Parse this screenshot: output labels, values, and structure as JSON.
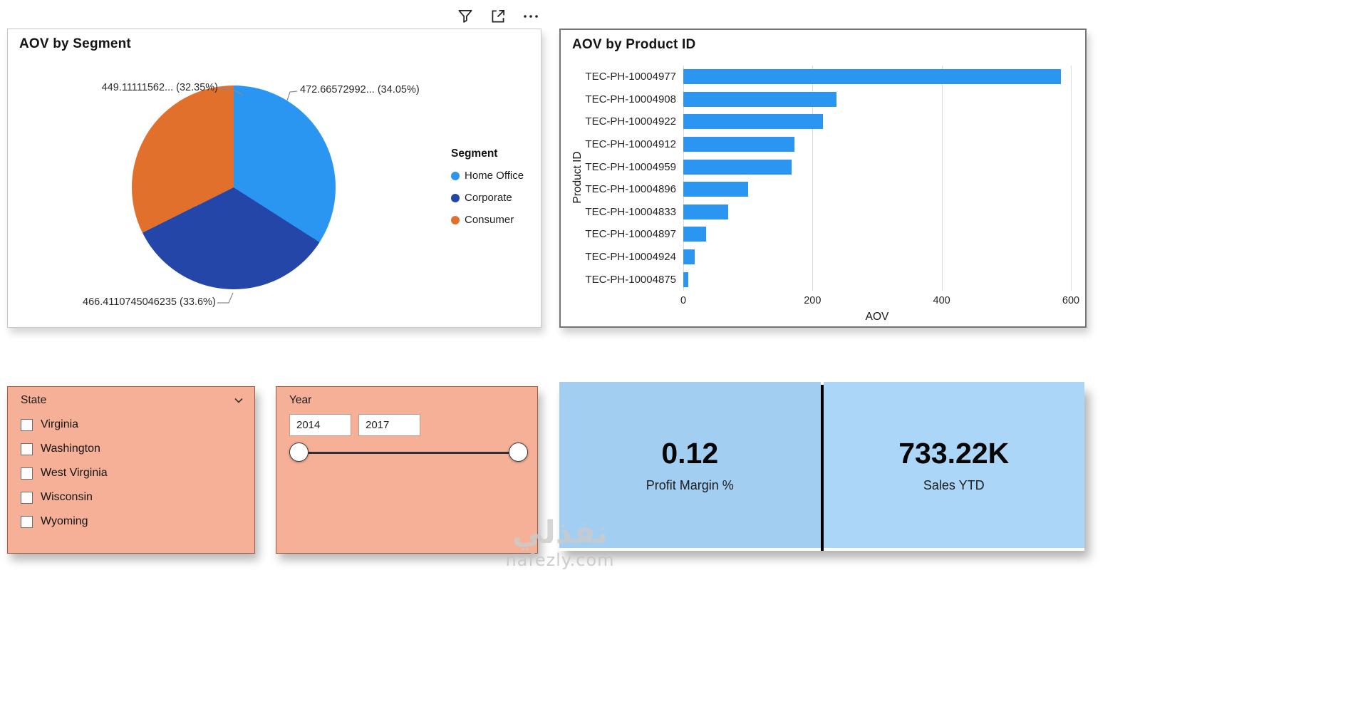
{
  "toolbar": {
    "icons": [
      {
        "name": "filter",
        "glyph": "funnel"
      },
      {
        "name": "pop-out",
        "glyph": "square-arrow"
      },
      {
        "name": "more-options",
        "glyph": "ellipsis"
      }
    ]
  },
  "chart_data": [
    {
      "type": "pie",
      "title": "AOV by Segment",
      "legend_title": "Segment",
      "legend_position": "right",
      "slices": [
        {
          "label": "Home Office",
          "value": 472.66572992,
          "pct": 34.05,
          "color": "#2B96F1",
          "data_label": "472.66572992... (34.05%)"
        },
        {
          "label": "Corporate",
          "value": 466.4110745046235,
          "pct": 33.6,
          "color": "#2446A9",
          "data_label": "466.4110745046235 (33.6%)"
        },
        {
          "label": "Consumer",
          "value": 449.11111562,
          "pct": 32.35,
          "color": "#E1702D",
          "data_label": "449.11111562... (32.35%)"
        }
      ]
    },
    {
      "type": "bar",
      "orientation": "horizontal",
      "title": "AOV by Product ID",
      "xlabel": "AOV",
      "ylabel": "Product ID",
      "xlim": [
        0,
        600
      ],
      "xticks": [
        0,
        200,
        400,
        600
      ],
      "grid": true,
      "bar_color": "#2B96F1",
      "categories": [
        "TEC-PH-10004977",
        "TEC-PH-10004908",
        "TEC-PH-10004922",
        "TEC-PH-10004912",
        "TEC-PH-10004959",
        "TEC-PH-10004896",
        "TEC-PH-10004833",
        "TEC-PH-10004897",
        "TEC-PH-10004924",
        "TEC-PH-10004875"
      ],
      "values": [
        585,
        237,
        216,
        172,
        168,
        100,
        70,
        35,
        18,
        8
      ]
    }
  ],
  "slicers": {
    "state": {
      "title": "State",
      "items": [
        {
          "label": "Virginia",
          "checked": false
        },
        {
          "label": "Washington",
          "checked": false
        },
        {
          "label": "West Virginia",
          "checked": false
        },
        {
          "label": "Wisconsin",
          "checked": false
        },
        {
          "label": "Wyoming",
          "checked": false
        }
      ]
    },
    "year": {
      "title": "Year",
      "start_value": "2014",
      "end_value": "2017"
    }
  },
  "kpis": [
    {
      "value": "0.12",
      "label": "Profit Margin %"
    },
    {
      "value": "733.22K",
      "label": "Sales YTD"
    }
  ],
  "watermark": {
    "logo_text": "نفذلي",
    "site_text": "nafezly.com"
  },
  "colors": {
    "bar_blue": "#2B96F1",
    "slicer_bg": "#F5B097",
    "slicer_border": "#9a5e47",
    "kpi_bg_left": "#A2CEF2",
    "kpi_bg_right": "#ABD6F8",
    "kpi_divider": "#000000"
  }
}
